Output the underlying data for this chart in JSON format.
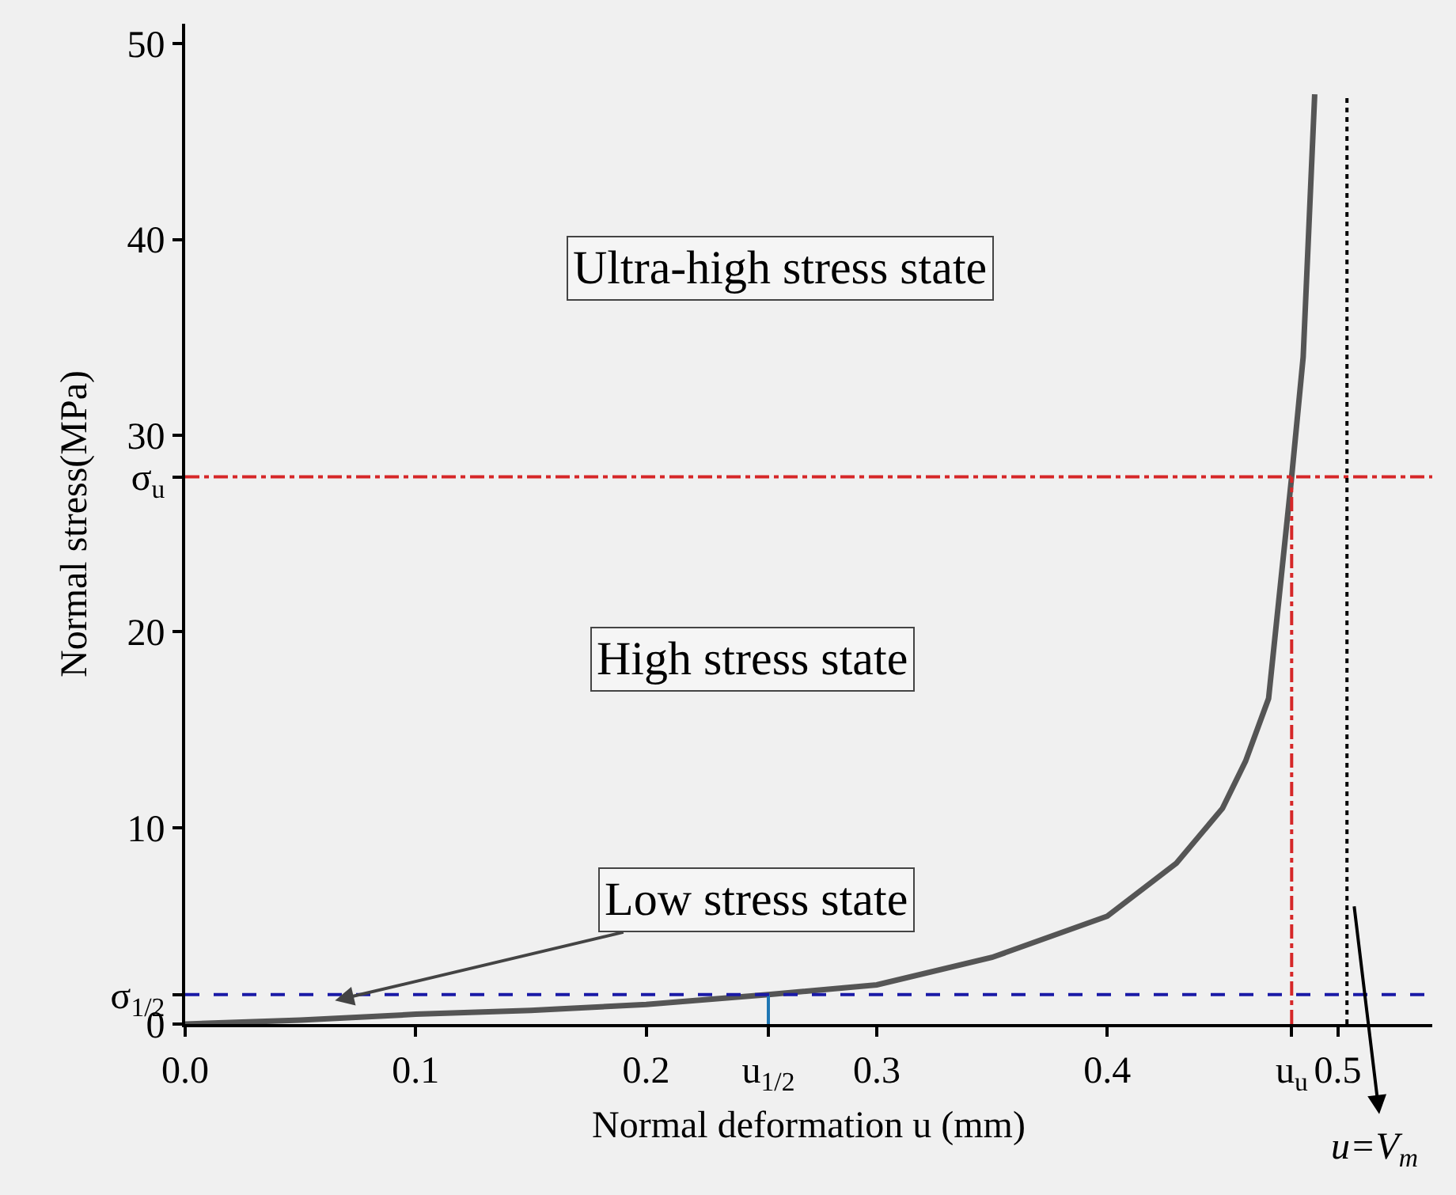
{
  "chart_data": {
    "type": "line",
    "xlabel": "Normal deformation u (mm)",
    "ylabel": "Normal stress(MPa)",
    "xlim": [
      0,
      0.541
    ],
    "ylim": [
      0,
      51
    ],
    "xticks": [
      {
        "value": 0,
        "label": "0.0"
      },
      0.1,
      0.2,
      {
        "value": 0.253,
        "label": "u$_{1/2}$"
      },
      0.3,
      0.4,
      {
        "value": 0.48,
        "label": "u$_{u}$"
      },
      0.5
    ],
    "yticks": [
      0,
      {
        "value": 1.5,
        "label": "σ$_{1/2}$"
      },
      10,
      20,
      {
        "value": 27.9,
        "label": "σ$_{u}$"
      },
      30,
      40,
      50
    ],
    "grid": false,
    "marker": "none",
    "series": [
      {
        "color": "#555555",
        "line_style": "solid",
        "x": [
          0,
          0.05,
          0.1,
          0.15,
          0.2,
          0.253,
          0.3,
          0.35,
          0.4,
          0.43,
          0.45,
          0.46,
          0.47,
          0.48,
          0.485,
          0.49
        ],
        "values": [
          0,
          0.2,
          0.5,
          0.7,
          1.0,
          1.5,
          2.0,
          3.4,
          5.5,
          8.2,
          11,
          13.4,
          16.6,
          27.9,
          34,
          47.4
        ]
      },
      {
        "color": "#d62728",
        "line_style": "dashdot",
        "x": [
          0.48,
          0.48
        ],
        "values": [
          0,
          27.9
        ]
      },
      {
        "color": "#1f77b4",
        "line_style": "solid",
        "x": [
          0.253,
          0.253
        ],
        "values": [
          0,
          1.5
        ]
      }
    ],
    "ref_lines": [
      {
        "axis": "y",
        "value": 27.9,
        "color": "#d62728",
        "line_style": "dashdot"
      },
      {
        "axis": "y",
        "value": 1.5,
        "color": "#1a1aa6",
        "line_style": "dashed"
      },
      {
        "axis": "x",
        "value": 0.504,
        "color": "#000000",
        "line_style": "dotted",
        "label": "u=V$_{m}$"
      }
    ],
    "annotations": [
      "Ultra-high stress state",
      "High stress state",
      {
        "text": "Low stress state",
        "x": 0.065,
        "y": 1.2
      }
    ]
  }
}
